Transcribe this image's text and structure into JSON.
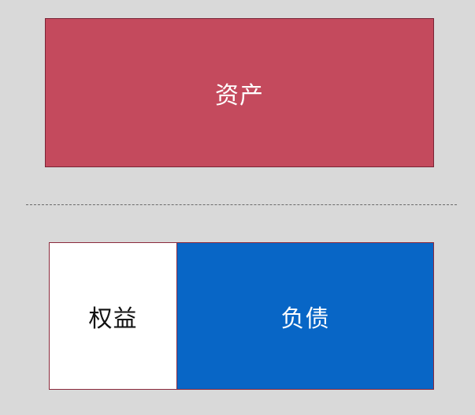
{
  "diagram": {
    "assets": {
      "label": "资产",
      "color": "#c44a5d"
    },
    "equity": {
      "label": "权益",
      "color": "#ffffff"
    },
    "liabilities": {
      "label": "负债",
      "color": "#0866c6"
    }
  }
}
